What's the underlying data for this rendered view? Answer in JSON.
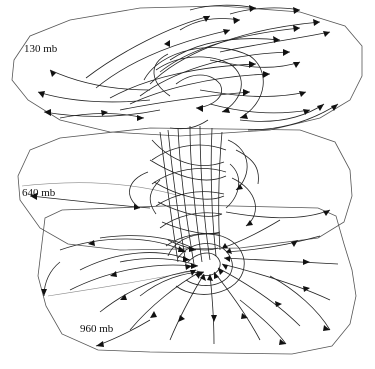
{
  "figure": {
    "levels": [
      {
        "id": "upper",
        "label": "130 mb"
      },
      {
        "id": "middle",
        "label": "640 mb"
      },
      {
        "id": "lower",
        "label": "960 mb"
      }
    ]
  },
  "colors": {
    "background": "#ffffff",
    "streamline": "#222222",
    "plane_outline": "#555555"
  }
}
